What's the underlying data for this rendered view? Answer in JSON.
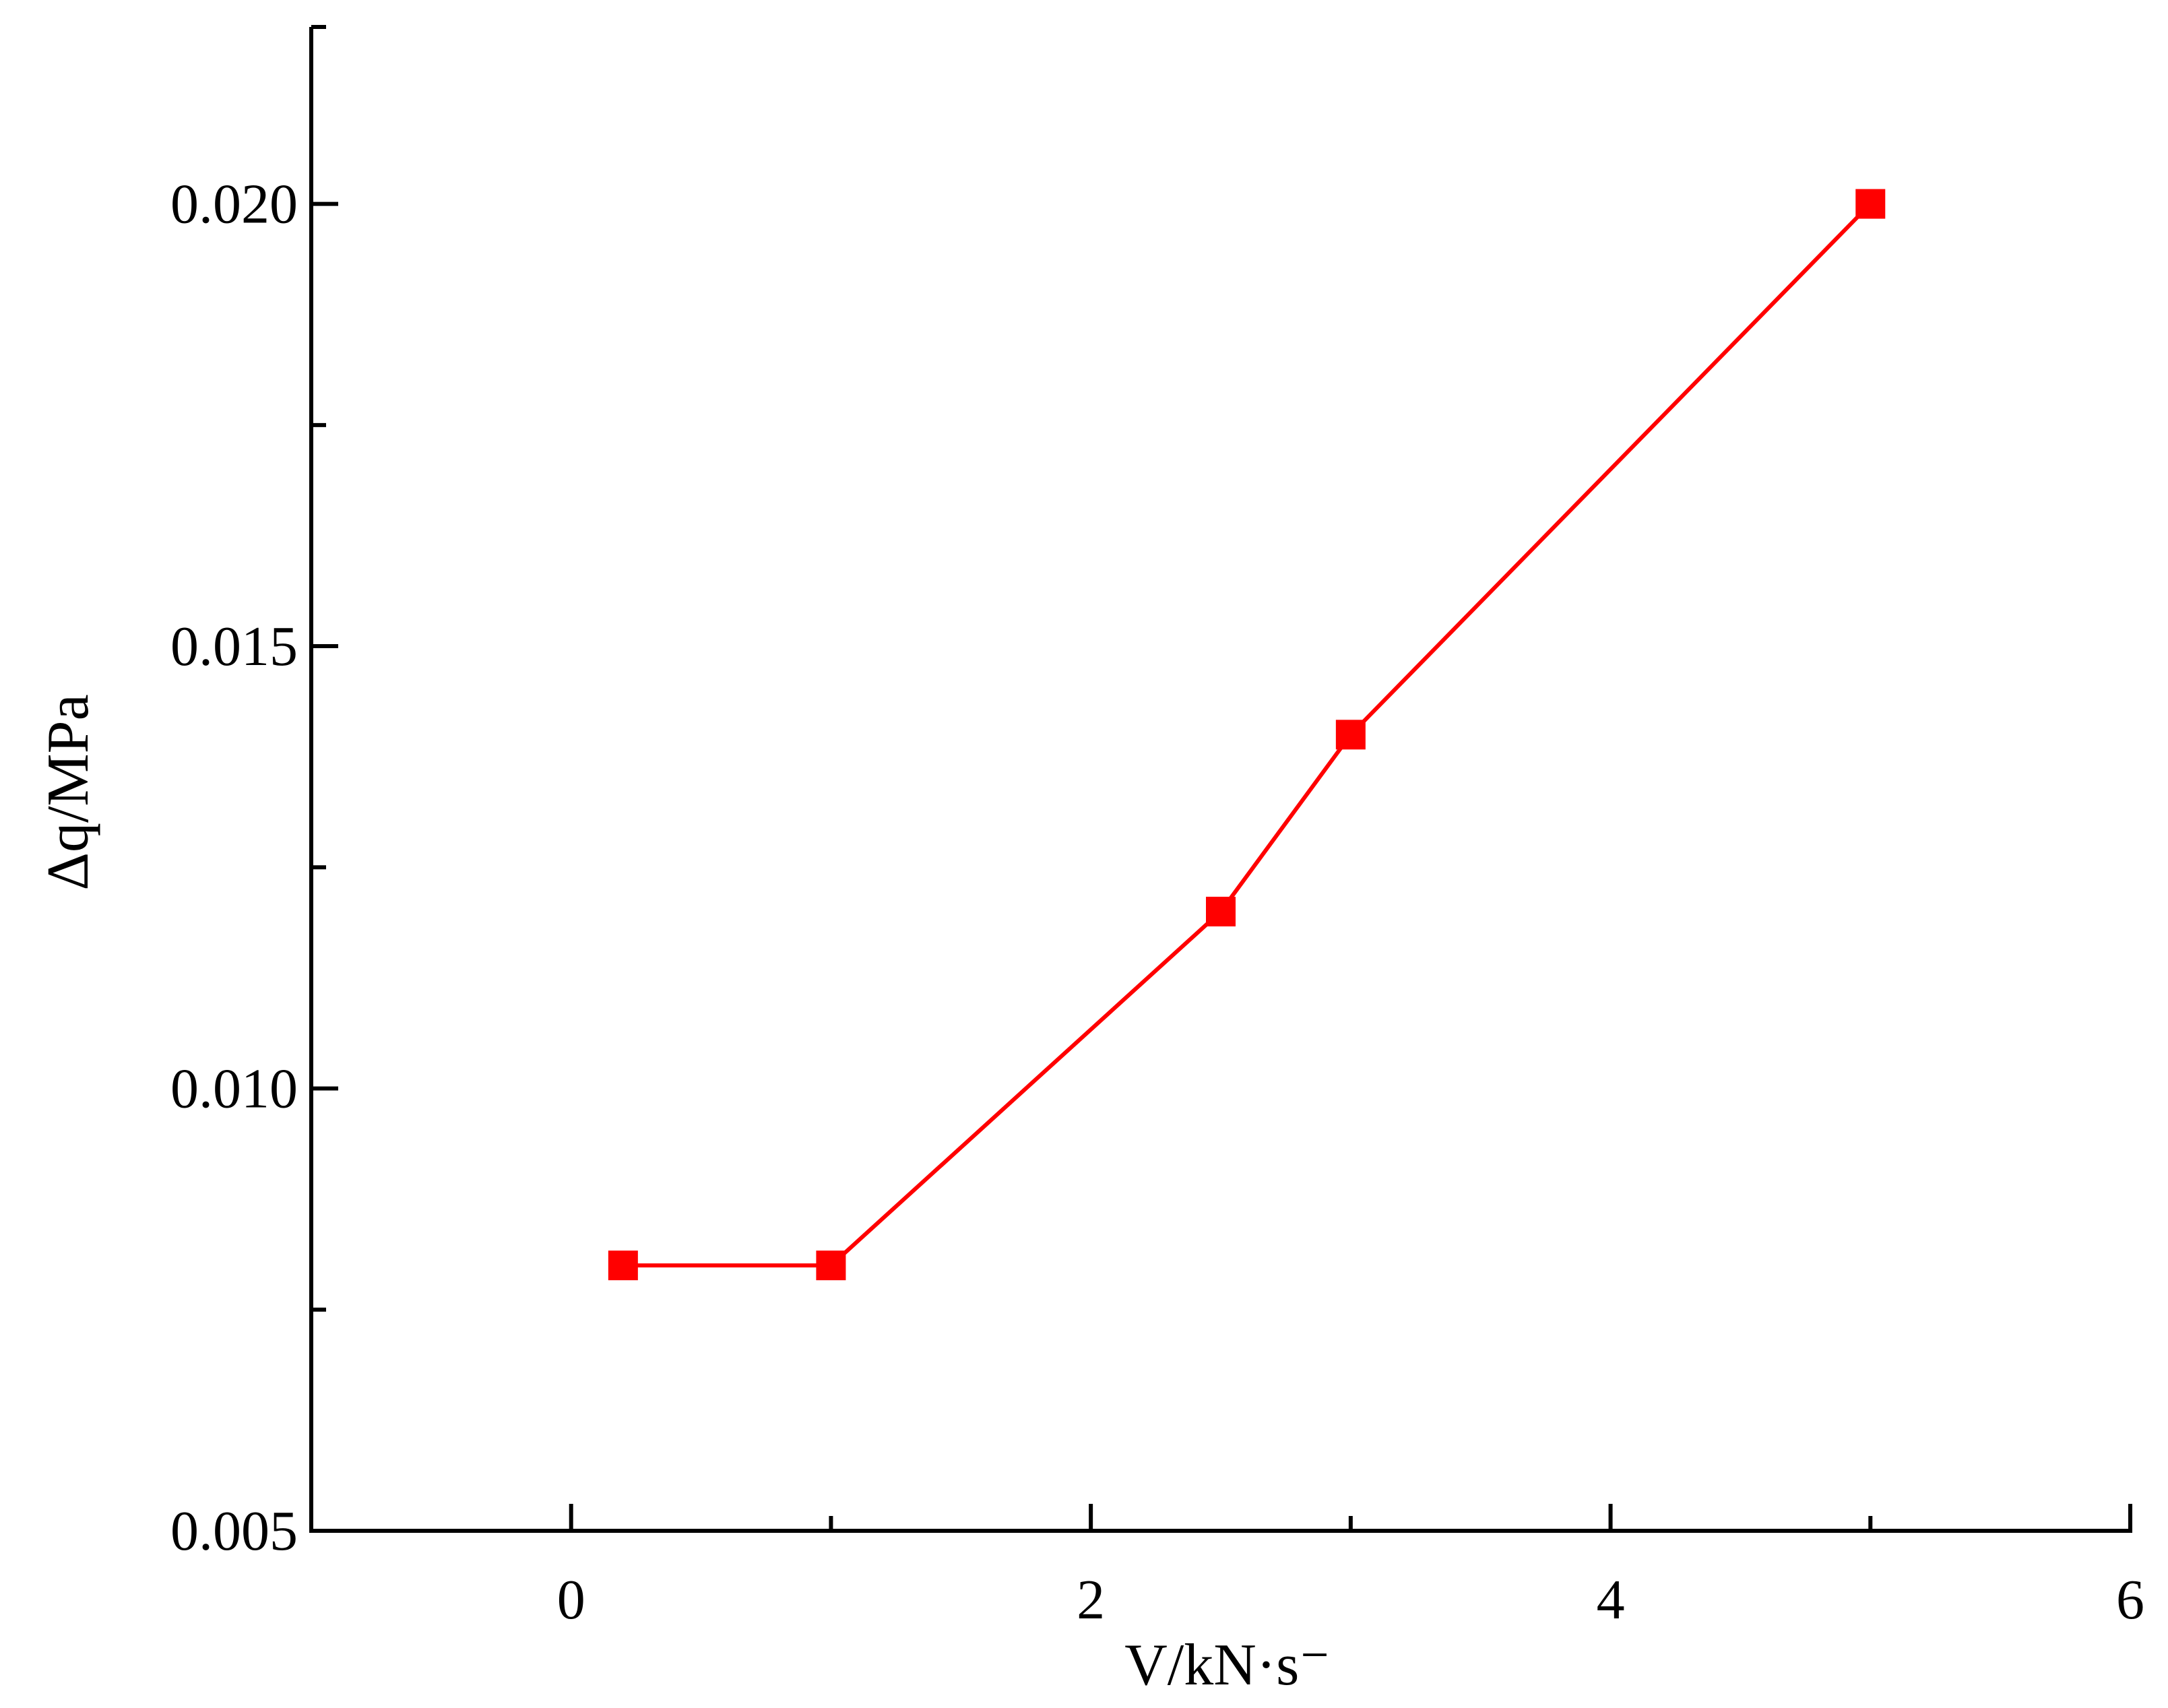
{
  "chart_data": {
    "type": "line",
    "title": "",
    "xlabel": "V/kN·s⁻",
    "ylabel": "Δq/MPa",
    "xlim": [
      -1,
      6
    ],
    "ylim": [
      0.005,
      0.022
    ],
    "x_ticks": [
      0,
      2,
      4,
      6
    ],
    "x_tick_labels": [
      "0",
      "2",
      "4",
      "6"
    ],
    "x_minor_ticks": [
      1,
      3,
      5
    ],
    "y_ticks": [
      0.005,
      0.01,
      0.015,
      0.02
    ],
    "y_tick_labels": [
      "0.005",
      "0.010",
      "0.015",
      "0.020"
    ],
    "y_minor_ticks": [
      0.0075,
      0.0125,
      0.0175
    ],
    "grid": false,
    "legend": "none",
    "series": [
      {
        "color": "#ff0000",
        "marker": "square",
        "x": [
          0.2,
          1,
          2.5,
          3,
          5
        ],
        "y": [
          0.008,
          0.008,
          0.012,
          0.014,
          0.02
        ]
      }
    ]
  }
}
